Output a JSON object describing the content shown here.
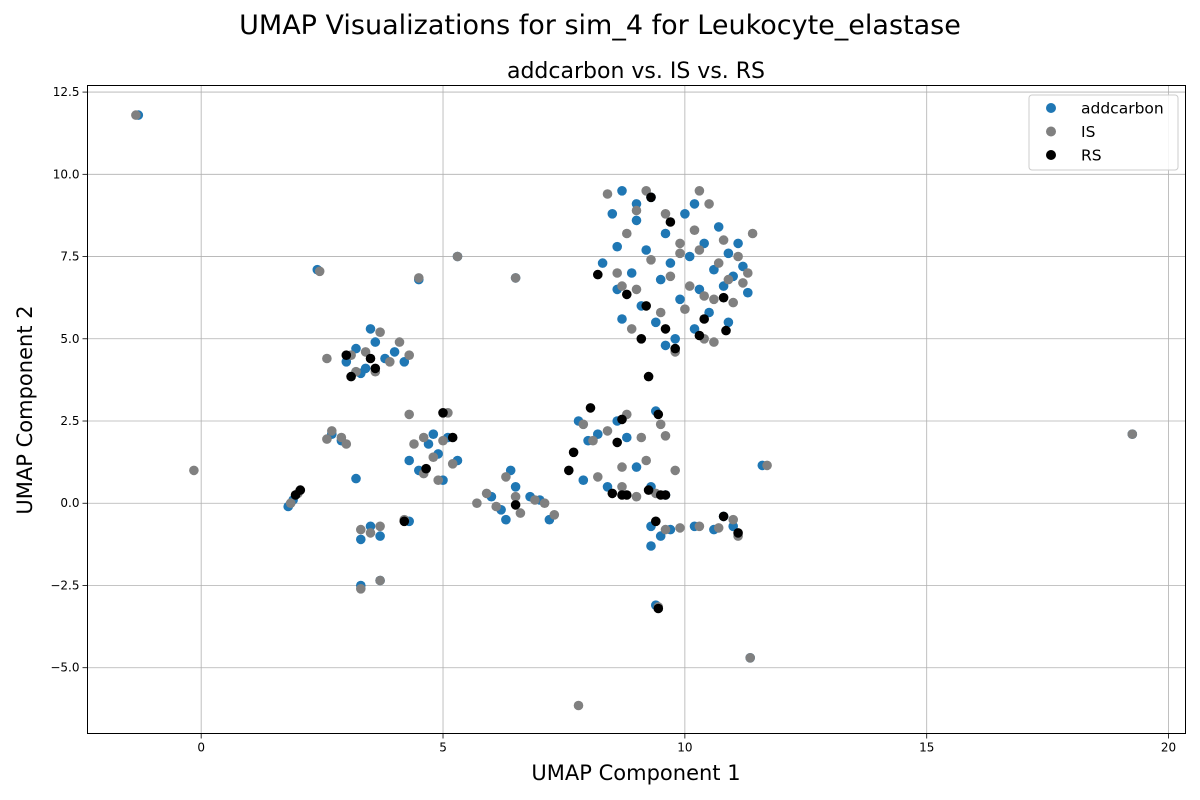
{
  "figure": {
    "suptitle": "UMAP Visualizations for sim_4 for Leukocyte_elastase"
  },
  "chart_data": {
    "type": "scatter",
    "title": "addcarbon vs. IS vs. RS",
    "xlabel": "UMAP Component 1",
    "ylabel": "UMAP Component 2",
    "xlim": [
      -2.35,
      20.35
    ],
    "ylim": [
      -7.0,
      12.7
    ],
    "xticks": [
      0,
      5,
      10,
      15,
      20
    ],
    "xtick_labels": [
      "0",
      "5",
      "10",
      "15",
      "20"
    ],
    "yticks": [
      -5.0,
      -2.5,
      0.0,
      2.5,
      5.0,
      7.5,
      10.0,
      12.5
    ],
    "ytick_labels": [
      "−5.0",
      "−2.5",
      "0.0",
      "2.5",
      "5.0",
      "7.5",
      "10.0",
      "12.5"
    ],
    "grid": true,
    "legend_position": "top-right",
    "series": [
      {
        "name": "addcarbon",
        "color": "#1f77b4",
        "points": [
          [
            -1.3,
            11.8
          ],
          [
            2.4,
            7.1
          ],
          [
            4.5,
            6.8
          ],
          [
            5.3,
            7.5
          ],
          [
            6.5,
            6.85
          ],
          [
            3.0,
            4.3
          ],
          [
            3.2,
            4.7
          ],
          [
            3.4,
            4.1
          ],
          [
            3.6,
            4.9
          ],
          [
            3.8,
            4.4
          ],
          [
            4.0,
            4.6
          ],
          [
            4.2,
            4.3
          ],
          [
            3.5,
            5.3
          ],
          [
            3.3,
            3.95
          ],
          [
            2.7,
            2.1
          ],
          [
            2.9,
            1.9
          ],
          [
            3.2,
            0.75
          ],
          [
            4.3,
            1.3
          ],
          [
            4.5,
            1.0
          ],
          [
            4.7,
            1.8
          ],
          [
            4.9,
            1.5
          ],
          [
            5.0,
            0.7
          ],
          [
            5.1,
            2.0
          ],
          [
            4.8,
            2.1
          ],
          [
            5.3,
            1.3
          ],
          [
            1.8,
            -0.1
          ],
          [
            1.9,
            0.1
          ],
          [
            3.3,
            -1.1
          ],
          [
            3.5,
            -0.7
          ],
          [
            3.7,
            -1.0
          ],
          [
            4.3,
            -0.55
          ],
          [
            6.0,
            0.2
          ],
          [
            6.2,
            -0.2
          ],
          [
            6.3,
            -0.5
          ],
          [
            6.4,
            1.0
          ],
          [
            6.5,
            0.5
          ],
          [
            6.8,
            0.2
          ],
          [
            7.0,
            0.1
          ],
          [
            7.2,
            -0.5
          ],
          [
            7.8,
            2.5
          ],
          [
            8.0,
            1.9
          ],
          [
            8.2,
            2.1
          ],
          [
            8.6,
            2.5
          ],
          [
            8.8,
            2.0
          ],
          [
            9.0,
            1.1
          ],
          [
            9.3,
            0.5
          ],
          [
            9.6,
            0.25
          ],
          [
            7.9,
            0.7
          ],
          [
            8.4,
            0.5
          ],
          [
            9.4,
            2.8
          ],
          [
            9.3,
            -0.7
          ],
          [
            9.5,
            -1.0
          ],
          [
            9.7,
            -0.8
          ],
          [
            10.2,
            -0.7
          ],
          [
            10.6,
            -0.8
          ],
          [
            10.8,
            -0.4
          ],
          [
            11.0,
            -0.7
          ],
          [
            9.3,
            -1.3
          ],
          [
            3.3,
            -2.5
          ],
          [
            3.7,
            -2.35
          ],
          [
            9.4,
            -3.1
          ],
          [
            11.35,
            -4.7
          ],
          [
            11.6,
            1.15
          ],
          [
            19.25,
            2.1
          ],
          [
            8.3,
            7.3
          ],
          [
            8.5,
            8.8
          ],
          [
            8.6,
            6.5
          ],
          [
            8.7,
            9.5
          ],
          [
            8.9,
            7.0
          ],
          [
            9.0,
            8.6
          ],
          [
            9.1,
            6.0
          ],
          [
            9.2,
            7.7
          ],
          [
            9.3,
            9.3
          ],
          [
            9.4,
            5.5
          ],
          [
            9.5,
            6.8
          ],
          [
            9.6,
            8.2
          ],
          [
            9.7,
            7.3
          ],
          [
            9.8,
            5.0
          ],
          [
            9.9,
            6.2
          ],
          [
            10.0,
            8.8
          ],
          [
            10.1,
            7.5
          ],
          [
            10.2,
            5.3
          ],
          [
            10.3,
            6.5
          ],
          [
            10.4,
            7.9
          ],
          [
            10.5,
            5.8
          ],
          [
            10.6,
            7.1
          ],
          [
            10.7,
            8.4
          ],
          [
            10.8,
            6.6
          ],
          [
            10.9,
            7.6
          ],
          [
            11.0,
            6.9
          ],
          [
            11.1,
            7.9
          ],
          [
            11.2,
            7.2
          ],
          [
            11.3,
            6.4
          ],
          [
            8.7,
            5.6
          ],
          [
            9.0,
            9.1
          ],
          [
            10.2,
            9.1
          ],
          [
            8.6,
            7.8
          ],
          [
            9.6,
            4.8
          ],
          [
            10.9,
            5.5
          ]
        ]
      },
      {
        "name": "IS",
        "color": "#808080",
        "points": [
          [
            -1.35,
            11.8
          ],
          [
            2.45,
            7.05
          ],
          [
            4.5,
            6.85
          ],
          [
            5.3,
            7.5
          ],
          [
            6.5,
            6.85
          ],
          [
            2.6,
            4.4
          ],
          [
            3.1,
            4.5
          ],
          [
            3.4,
            4.6
          ],
          [
            3.7,
            5.2
          ],
          [
            3.9,
            4.3
          ],
          [
            4.1,
            4.9
          ],
          [
            4.3,
            4.5
          ],
          [
            3.2,
            4.0
          ],
          [
            3.6,
            4.0
          ],
          [
            2.7,
            2.2
          ],
          [
            2.9,
            2.0
          ],
          [
            3.0,
            1.8
          ],
          [
            2.6,
            1.95
          ],
          [
            4.3,
            2.7
          ],
          [
            4.4,
            1.8
          ],
          [
            4.6,
            0.9
          ],
          [
            4.8,
            1.4
          ],
          [
            5.0,
            1.9
          ],
          [
            5.2,
            1.2
          ],
          [
            4.9,
            0.7
          ],
          [
            5.1,
            2.75
          ],
          [
            4.6,
            2.0
          ],
          [
            1.85,
            0.0
          ],
          [
            2.0,
            0.3
          ],
          [
            3.3,
            -0.8
          ],
          [
            3.5,
            -0.9
          ],
          [
            3.7,
            -0.7
          ],
          [
            4.2,
            -0.5
          ],
          [
            5.7,
            0.0
          ],
          [
            5.9,
            0.3
          ],
          [
            6.1,
            -0.1
          ],
          [
            6.3,
            0.8
          ],
          [
            6.5,
            0.2
          ],
          [
            6.6,
            -0.3
          ],
          [
            6.9,
            0.1
          ],
          [
            7.1,
            0.0
          ],
          [
            7.3,
            -0.35
          ],
          [
            7.9,
            2.4
          ],
          [
            8.1,
            1.9
          ],
          [
            8.4,
            2.2
          ],
          [
            8.8,
            2.7
          ],
          [
            9.1,
            2.0
          ],
          [
            9.5,
            2.4
          ],
          [
            8.2,
            0.8
          ],
          [
            8.7,
            0.5
          ],
          [
            9.0,
            0.2
          ],
          [
            9.4,
            0.3
          ],
          [
            8.7,
            1.1
          ],
          [
            9.2,
            1.3
          ],
          [
            9.8,
            1.0
          ],
          [
            9.6,
            2.05
          ],
          [
            9.6,
            -0.8
          ],
          [
            9.9,
            -0.75
          ],
          [
            10.3,
            -0.7
          ],
          [
            10.7,
            -0.75
          ],
          [
            11.0,
            -0.5
          ],
          [
            11.1,
            -1.0
          ],
          [
            3.3,
            -2.6
          ],
          [
            3.7,
            -2.35
          ],
          [
            9.45,
            -3.15
          ],
          [
            11.35,
            -4.7
          ],
          [
            11.7,
            1.15
          ],
          [
            19.25,
            2.1
          ],
          [
            -0.15,
            1.0
          ],
          [
            7.8,
            -6.15
          ],
          [
            8.4,
            9.4
          ],
          [
            8.6,
            7.0
          ],
          [
            8.8,
            8.2
          ],
          [
            9.0,
            6.5
          ],
          [
            9.2,
            9.5
          ],
          [
            9.3,
            7.4
          ],
          [
            9.5,
            5.8
          ],
          [
            9.6,
            8.8
          ],
          [
            9.7,
            6.9
          ],
          [
            9.8,
            4.6
          ],
          [
            9.9,
            7.9
          ],
          [
            10.0,
            5.9
          ],
          [
            10.1,
            6.6
          ],
          [
            10.2,
            8.3
          ],
          [
            10.3,
            7.7
          ],
          [
            10.4,
            5.0
          ],
          [
            10.5,
            9.1
          ],
          [
            10.6,
            6.2
          ],
          [
            10.7,
            7.3
          ],
          [
            10.8,
            8.0
          ],
          [
            10.9,
            6.8
          ],
          [
            11.0,
            6.1
          ],
          [
            11.1,
            7.5
          ],
          [
            11.2,
            6.7
          ],
          [
            11.4,
            8.2
          ],
          [
            11.3,
            7.0
          ],
          [
            8.9,
            5.3
          ],
          [
            9.0,
            8.9
          ],
          [
            10.3,
            9.5
          ],
          [
            8.7,
            6.6
          ],
          [
            9.9,
            7.6
          ],
          [
            10.6,
            4.9
          ],
          [
            10.4,
            6.3
          ]
        ]
      },
      {
        "name": "RS",
        "color": "#000000",
        "points": [
          [
            3.0,
            4.5
          ],
          [
            3.1,
            3.85
          ],
          [
            3.5,
            4.4
          ],
          [
            3.6,
            4.1
          ],
          [
            5.0,
            2.75
          ],
          [
            5.2,
            2.0
          ],
          [
            4.65,
            1.05
          ],
          [
            4.2,
            -0.55
          ],
          [
            1.95,
            0.25
          ],
          [
            2.05,
            0.4
          ],
          [
            6.5,
            -0.05
          ],
          [
            7.6,
            1.0
          ],
          [
            7.7,
            1.55
          ],
          [
            8.05,
            2.9
          ],
          [
            8.6,
            1.85
          ],
          [
            8.7,
            2.55
          ],
          [
            9.25,
            3.85
          ],
          [
            9.45,
            2.7
          ],
          [
            8.5,
            0.3
          ],
          [
            8.7,
            0.25
          ],
          [
            8.8,
            0.25
          ],
          [
            9.25,
            0.4
          ],
          [
            9.5,
            0.25
          ],
          [
            9.6,
            0.25
          ],
          [
            9.4,
            -0.55
          ],
          [
            10.8,
            -0.4
          ],
          [
            11.1,
            -0.9
          ],
          [
            9.45,
            -3.2
          ],
          [
            8.2,
            6.95
          ],
          [
            8.8,
            6.35
          ],
          [
            9.1,
            5.0
          ],
          [
            9.2,
            6.0
          ],
          [
            9.3,
            9.3
          ],
          [
            9.6,
            5.3
          ],
          [
            9.7,
            8.55
          ],
          [
            9.8,
            4.7
          ],
          [
            10.3,
            5.1
          ],
          [
            10.4,
            5.6
          ],
          [
            10.8,
            6.25
          ],
          [
            10.85,
            5.25
          ]
        ]
      }
    ]
  }
}
